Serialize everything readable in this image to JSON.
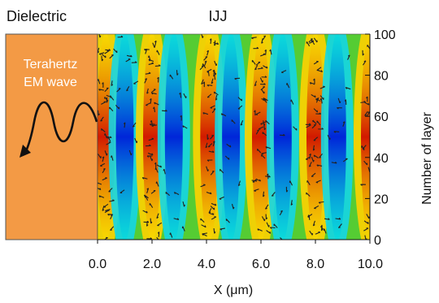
{
  "labels": {
    "dielectric": "Dielectric",
    "ijj": "IJJ",
    "wave_line1": "Terahertz",
    "wave_line2": "EM wave"
  },
  "axes": {
    "xlabel": "X (μm)",
    "ylabel": "Number of  layer",
    "xticks": [
      "0.0",
      "2.0",
      "4.0",
      "6.0",
      "8.0",
      "10.0"
    ],
    "yticks": [
      "0",
      "20",
      "40",
      "60",
      "80",
      "100"
    ]
  },
  "colors": {
    "dielectric": "#f39a45",
    "arrow": "#111111",
    "vortex_marker": "#222222"
  },
  "field": {
    "x_range": [
      0,
      10
    ],
    "y_range": [
      0,
      100
    ],
    "stripe_centers_um": [
      0.3,
      1.0,
      2.0,
      2.8,
      4.1,
      4.9,
      6.0,
      6.8,
      8.0,
      8.8,
      10.0
    ],
    "stripe_polarity": [
      "red",
      "blue",
      "red",
      "blue",
      "red",
      "blue",
      "red",
      "blue",
      "red",
      "blue",
      "red"
    ]
  }
}
